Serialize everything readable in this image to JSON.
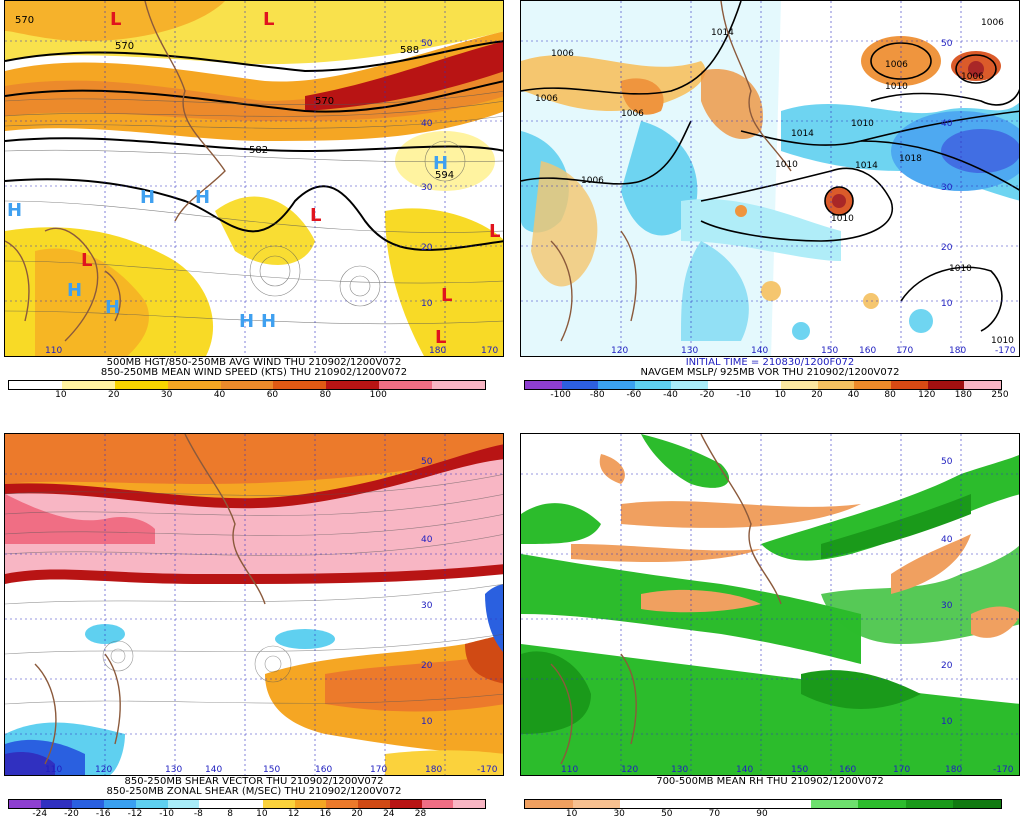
{
  "panels": [
    {
      "caption1": "500MB HGT/850-250MB AVG WIND THU 210902/1200V072",
      "caption2": "850-250MB MEAN WIND SPEED (KTS) THU 210902/1200V072",
      "colors": [
        "#ffffff",
        "#fff3a0",
        "#f7d400",
        "#f5a623",
        "#ec8a2b",
        "#e05a14",
        "#b81414",
        "#f06e84",
        "#f8b6c4"
      ],
      "ticks": [
        "10",
        "20",
        "30",
        "40",
        "60",
        "80",
        "100"
      ],
      "height_labels": [
        "570",
        "570",
        "582",
        "588",
        "570",
        "594"
      ],
      "pressure_letters": [
        "L",
        "L",
        "L",
        "L",
        "L",
        "L",
        "L",
        "H",
        "H",
        "H",
        "H",
        "H",
        "H",
        "H",
        "H"
      ],
      "lat_labels": [
        "50",
        "40",
        "30",
        "20",
        "10"
      ],
      "lon_labels": [
        "110",
        "180",
        "170"
      ]
    },
    {
      "caption1": "INITIAL TIME = 210830/1200F072",
      "caption2": "NAVGEM MSLP/ 925MB VOR THU 210902/1200V072",
      "colors": [
        "#8e3fd0",
        "#2d5fe0",
        "#3ba0f0",
        "#5fd0f0",
        "#a8ecf8",
        "#ffffff",
        "#ffffff",
        "#fbe7a0",
        "#f5c060",
        "#ee8a2a",
        "#d84a14",
        "#a01010",
        "#f8b6c4"
      ],
      "ticks": [
        "-100",
        "-80",
        "-60",
        "-40",
        "-20",
        "-10",
        "10",
        "20",
        "40",
        "80",
        "120",
        "180",
        "250"
      ],
      "isobar_labels": [
        "1006",
        "1014",
        "1006",
        "1010",
        "1014",
        "1006",
        "1006",
        "1010",
        "1014",
        "1018",
        "1006",
        "1006",
        "1010",
        "1010",
        "1010",
        "1010",
        "1006"
      ],
      "lat_labels": [
        "50",
        "40",
        "30",
        "20",
        "10"
      ],
      "lon_labels": [
        "120",
        "130",
        "140",
        "150",
        "160",
        "170",
        "180",
        "-170"
      ]
    },
    {
      "caption1": "850-250MB SHEAR VECTOR THU 210902/1200V072",
      "caption2": "850-250MB ZONAL SHEAR (M/SEC) THU 210902/1200V072",
      "colors": [
        "#8e3fd0",
        "#3030c0",
        "#2a60e0",
        "#3aa0f0",
        "#5fd0f0",
        "#a8ecf8",
        "#ffffff",
        "#ffffff",
        "#fbd23c",
        "#f5a623",
        "#ec7a2b",
        "#d04a14",
        "#b81414",
        "#f06e84",
        "#f8b6c4"
      ],
      "ticks": [
        "-24",
        "-20",
        "-16",
        "-12",
        "-10",
        "-8",
        "8",
        "10",
        "12",
        "16",
        "20",
        "24",
        "28"
      ],
      "lat_labels": [
        "50",
        "40",
        "30",
        "20",
        "10"
      ],
      "lon_labels": [
        "110",
        "120",
        "130",
        "140",
        "150",
        "160",
        "170",
        "180",
        "-170"
      ]
    },
    {
      "caption1": "700-500MB MEAN RH THU 210902/1200V072",
      "colors": [
        "#f0a060",
        "#f7c090",
        "#ffffff",
        "#ffffff",
        "#ffffff",
        "#ffffff",
        "#6ee06e",
        "#2cbc2c",
        "#1a9a1a",
        "#117a11"
      ],
      "ticks": [
        "10",
        "30",
        "50",
        "70",
        "90"
      ],
      "lat_labels": [
        "50",
        "40",
        "30",
        "20",
        "10"
      ],
      "lon_labels": [
        "110",
        "120",
        "130",
        "140",
        "150",
        "160",
        "170",
        "180",
        "-170"
      ]
    }
  ]
}
